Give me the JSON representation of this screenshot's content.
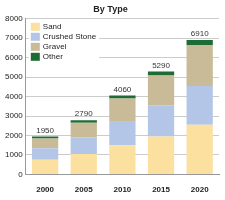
{
  "chart_data": {
    "type": "bar",
    "title": "By Type",
    "categories": [
      "2000",
      "2005",
      "2010",
      "2015",
      "2020"
    ],
    "series": [
      {
        "name": "Sand",
        "color": "#fbe0a0",
        "values": [
          750,
          1050,
          1500,
          1950,
          2550
        ]
      },
      {
        "name": "Crushed Stone",
        "color": "#b3c6e7",
        "values": [
          600,
          850,
          1250,
          1600,
          2000
        ]
      },
      {
        "name": "Gravel",
        "color": "#c9bb97",
        "values": [
          500,
          750,
          1150,
          1530,
          2100
        ]
      },
      {
        "name": "Other",
        "color": "#1d6b35",
        "values": [
          100,
          140,
          160,
          210,
          260
        ]
      }
    ],
    "totals": [
      1950,
      2790,
      4060,
      5290,
      6910
    ],
    "ylim": [
      0,
      8000
    ],
    "yticks": [
      0,
      1000,
      2000,
      3000,
      4000,
      5000,
      6000,
      7000,
      8000
    ],
    "grid": true,
    "stacked": true,
    "legend": "upper left"
  }
}
